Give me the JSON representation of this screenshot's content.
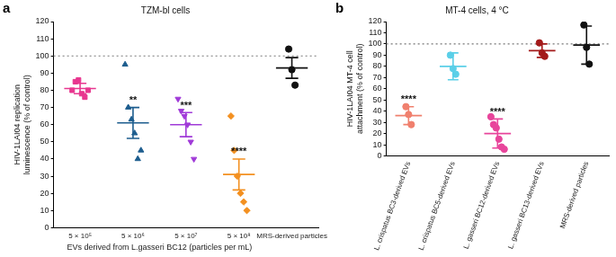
{
  "chart_data": [
    {
      "type": "scatter",
      "panel": "a",
      "title": "TZM-bl cells",
      "y_label": [
        "HIV-1LAI04 replication",
        "luminescence (% of control)"
      ],
      "x_label": "EVs derived from L.gasseri BC12 (particles per mL)",
      "categories": [
        "5 × 10⁵",
        "5 × 10⁶",
        "5 × 10⁷",
        "5 × 10⁸",
        "MRS-derived particles"
      ],
      "groups": [
        {
          "color": "#e8378f",
          "marker": "square",
          "values": [
            80,
            85,
            86,
            78,
            76,
            80
          ],
          "mean": 81,
          "error": 3
        },
        {
          "color": "#1d5d8e",
          "marker": "triangle",
          "values": [
            95,
            70,
            63,
            55,
            40,
            45
          ],
          "mean": 61,
          "error": 9,
          "annotation": "**"
        },
        {
          "color": "#a03ad8",
          "marker": "triangle-down",
          "values": [
            75,
            68,
            65,
            60,
            50,
            40
          ],
          "mean": 60,
          "error": 7,
          "annotation": "***"
        },
        {
          "color": "#f39020",
          "marker": "diamond",
          "values": [
            65,
            45,
            30,
            20,
            15,
            10
          ],
          "mean": 31,
          "error": 9,
          "annotation": "****"
        },
        {
          "color": "#111111",
          "marker": "circle",
          "values": [
            104,
            92,
            83
          ],
          "mean": 93,
          "error": 6
        }
      ],
      "reference_line": 100,
      "ylim": [
        0,
        120
      ],
      "yticks": [
        0,
        10,
        20,
        30,
        40,
        50,
        60,
        70,
        80,
        90,
        100,
        110,
        120
      ],
      "grid": false
    },
    {
      "type": "scatter",
      "panel": "b",
      "title": "MT-4 cells, 4 °C",
      "y_label": [
        "HIV-1LAI04 MT-4 cell",
        "attachment (% of control)"
      ],
      "categories": [
        "L. crispatus BC3-derived EVs",
        "L. crispatus BC5-derived EVs",
        "L. gasseri BC12-derived EVs",
        "L. gasseri BC13-derived EVs",
        "MRS-derived particles"
      ],
      "groups": [
        {
          "color": "#f0806e",
          "marker": "circle",
          "values": [
            44,
            37,
            28
          ],
          "mean": 36,
          "error": 8,
          "annotation": "****"
        },
        {
          "color": "#5bcfe8",
          "marker": "circle",
          "values": [
            90,
            78,
            73
          ],
          "mean": 80,
          "error": 12
        },
        {
          "color": "#e8459b",
          "marker": "circle",
          "values": [
            35,
            28,
            25,
            15,
            8,
            6
          ],
          "mean": 20,
          "error": 13,
          "annotation": "****"
        },
        {
          "color": "#a31a1a",
          "marker": "circle",
          "values": [
            101,
            92,
            89
          ],
          "mean": 94,
          "error": 6
        },
        {
          "color": "#111111",
          "marker": "circle",
          "values": [
            117,
            97,
            82
          ],
          "mean": 99,
          "error": 17
        }
      ],
      "reference_line": 100,
      "ylim": [
        0,
        120
      ],
      "yticks": [
        0,
        10,
        20,
        30,
        40,
        50,
        60,
        70,
        80,
        90,
        100,
        110,
        120
      ],
      "grid": false
    }
  ]
}
